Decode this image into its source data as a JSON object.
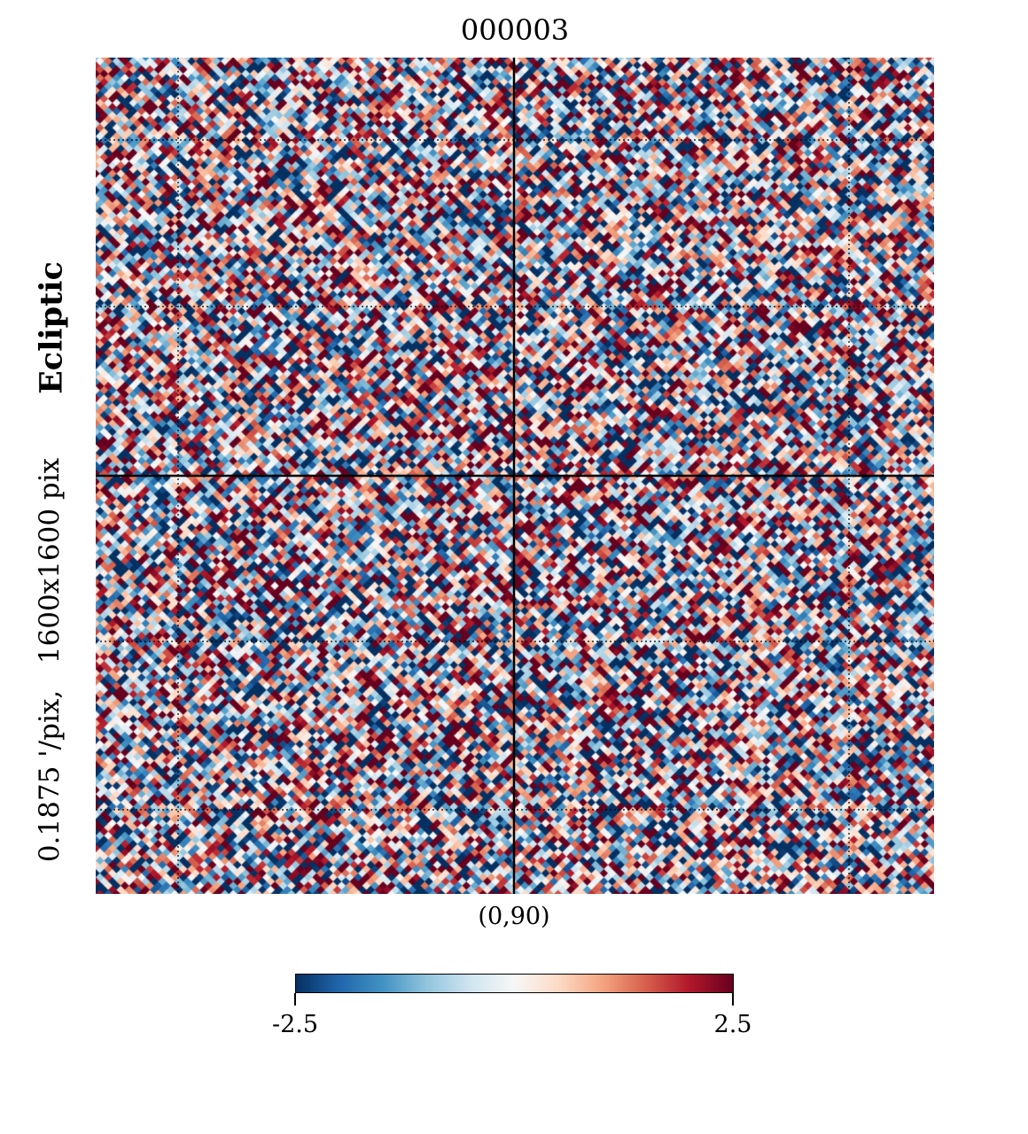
{
  "chart_data": {
    "type": "heatmap",
    "title": "000003",
    "coordinate_system": "Ecliptic",
    "resolution": "0.1875 '/pix,",
    "size": "1600x1600 pix",
    "center_label": "(0,90)",
    "colormap": "RdBu_r",
    "colorbar": {
      "min": -2.5,
      "max": 2.5,
      "tick_labels": [
        "-2.5",
        "2.5"
      ],
      "colors": [
        "#053061",
        "#2166ac",
        "#4393c3",
        "#92c5de",
        "#d1e5f0",
        "#f7f7f7",
        "#fddbc7",
        "#f4a582",
        "#d6604d",
        "#b2182b",
        "#67001f"
      ]
    },
    "graticule": true,
    "background_color": "#ffffff",
    "line_color": "#000000"
  }
}
